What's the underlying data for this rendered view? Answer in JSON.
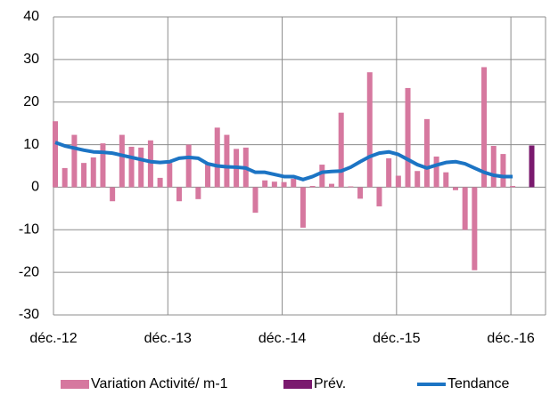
{
  "chart_data": {
    "type": "bar",
    "categories": [
      "déc.-12",
      null,
      null,
      null,
      null,
      null,
      null,
      null,
      null,
      null,
      null,
      null,
      "déc.-13",
      null,
      null,
      null,
      null,
      null,
      null,
      null,
      null,
      null,
      null,
      null,
      "déc.-14",
      null,
      null,
      null,
      null,
      null,
      null,
      null,
      null,
      null,
      null,
      null,
      "déc.-15",
      null,
      null,
      null,
      null,
      null,
      null,
      null,
      null,
      null,
      null,
      null,
      "déc.-16",
      null,
      null
    ],
    "series": [
      {
        "name": "Variation Activité/ m-1",
        "color": "#d6789f",
        "kind": "bar",
        "values": [
          15.5,
          4.5,
          12.3,
          5.7,
          7,
          10.3,
          -3.3,
          12.3,
          9.5,
          9.3,
          11,
          2.2,
          5.7,
          -3.3,
          10,
          -2.8,
          5.5,
          14,
          12.3,
          9,
          9.3,
          -6,
          1.6,
          1.3,
          1.2,
          2,
          -9.5,
          0.3,
          5.3,
          0.8,
          17.5,
          0.2,
          -2.7,
          27,
          -4.5,
          6.8,
          2.7,
          23.3,
          3.8,
          16,
          7.2,
          3.5,
          -0.7,
          -10,
          -19.5,
          28.2,
          9.7,
          7.8,
          0.3,
          null,
          null
        ]
      },
      {
        "name": "Prév.",
        "color": "#7a1a6e",
        "kind": "bar",
        "values": [
          null,
          null,
          null,
          null,
          null,
          null,
          null,
          null,
          null,
          null,
          null,
          null,
          null,
          null,
          null,
          null,
          null,
          null,
          null,
          null,
          null,
          null,
          null,
          null,
          null,
          null,
          null,
          null,
          null,
          null,
          null,
          null,
          null,
          null,
          null,
          null,
          null,
          null,
          null,
          null,
          null,
          null,
          null,
          null,
          null,
          null,
          null,
          null,
          null,
          null,
          9.8
        ]
      },
      {
        "name": "Tendance",
        "color": "#1c74c4",
        "kind": "line",
        "values": [
          10.5,
          9.7,
          9.2,
          8.7,
          8.3,
          8.2,
          8,
          7.5,
          7,
          6.5,
          6,
          5.8,
          6,
          6.8,
          7,
          6.8,
          5.5,
          5,
          4.8,
          4.7,
          4.5,
          3.5,
          3.5,
          3,
          2.5,
          2.5,
          1.8,
          2.5,
          3.5,
          3.7,
          3.8,
          4.7,
          6,
          7.2,
          8,
          8.3,
          7.7,
          6.5,
          5.3,
          4.5,
          5.2,
          5.8,
          6,
          5.5,
          4.5,
          3.5,
          2.8,
          2.5,
          2.5,
          null,
          null
        ]
      }
    ],
    "ylim": [
      -30,
      40
    ],
    "yticks": [
      -30,
      -20,
      -10,
      0,
      10,
      20,
      30,
      40
    ],
    "grid": true,
    "legend": "bottom"
  }
}
